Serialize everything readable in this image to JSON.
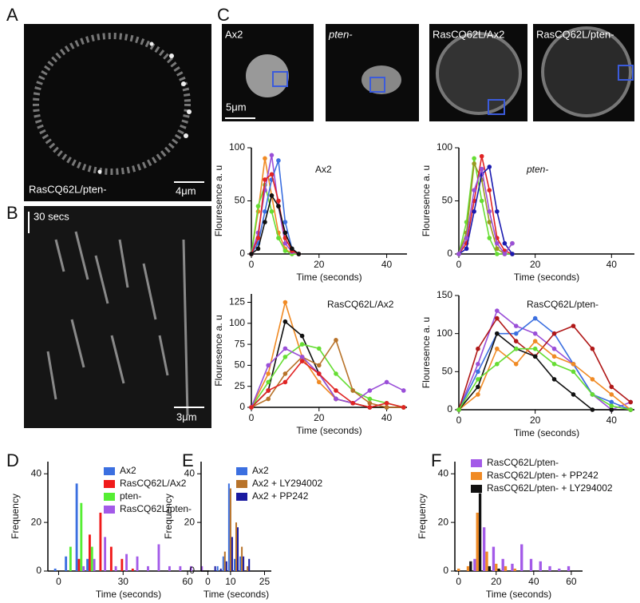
{
  "figure": {
    "panel_labels": [
      "A",
      "B",
      "C",
      "D",
      "E",
      "F"
    ],
    "panel_a": {
      "label": "RasCQ62L/pten-",
      "scale": "4μm"
    },
    "panel_b": {
      "time_scale": "30 secs",
      "scale": "3μm"
    },
    "panel_c": {
      "images": [
        "Ax2",
        "pten-",
        "RasCQ62L/Ax2",
        "RasCQ62L/pten-"
      ],
      "scale": "5μm"
    }
  },
  "chart_data": [
    {
      "type": "line",
      "title": "Ax2",
      "xlabel": "Time (seconds)",
      "ylabel": "Flouresence a. u",
      "x": [
        0,
        2,
        4,
        6,
        8,
        10,
        12,
        14
      ],
      "xlim": [
        0,
        46
      ],
      "xticks": [
        0,
        20,
        40
      ],
      "ylim": [
        0,
        100
      ],
      "yticks": [
        0,
        50,
        100
      ],
      "series": [
        {
          "name": "",
          "color": "#f08a24",
          "values": [
            0,
            40,
            90,
            55,
            20,
            5,
            0,
            0
          ]
        },
        {
          "name": "",
          "color": "#66dd33",
          "values": [
            0,
            45,
            65,
            40,
            15,
            3,
            0,
            0
          ]
        },
        {
          "name": "",
          "color": "#9a4fd8",
          "values": [
            0,
            20,
            60,
            93,
            45,
            10,
            2,
            0
          ]
        },
        {
          "name": "",
          "color": "#3b6fe0",
          "values": [
            0,
            10,
            40,
            70,
            88,
            30,
            5,
            0
          ]
        },
        {
          "name": "",
          "color": "#e02424",
          "values": [
            0,
            15,
            70,
            75,
            50,
            15,
            3,
            0
          ]
        },
        {
          "name": "",
          "color": "#111111",
          "values": [
            0,
            5,
            30,
            55,
            45,
            20,
            5,
            0
          ]
        }
      ]
    },
    {
      "type": "line",
      "title": "pten-",
      "xlabel": "Time (seconds)",
      "ylabel": "Flouresence a. u",
      "x": [
        0,
        2,
        4,
        6,
        8,
        10,
        12,
        14
      ],
      "xlim": [
        0,
        46
      ],
      "xticks": [
        0,
        20,
        40
      ],
      "ylim": [
        0,
        100
      ],
      "yticks": [
        0,
        50,
        100
      ],
      "series": [
        {
          "name": "",
          "color": "#66dd33",
          "values": [
            0,
            30,
            90,
            50,
            15,
            0,
            0,
            0
          ]
        },
        {
          "name": "",
          "color": "#9a9a20",
          "values": [
            0,
            20,
            85,
            70,
            30,
            5,
            0,
            10
          ]
        },
        {
          "name": "",
          "color": "#e02424",
          "values": [
            0,
            10,
            50,
            92,
            60,
            15,
            3,
            0
          ]
        },
        {
          "name": "",
          "color": "#1a1ab0",
          "values": [
            0,
            5,
            40,
            75,
            82,
            40,
            10,
            0
          ]
        },
        {
          "name": "",
          "color": "#9a4fd8",
          "values": [
            0,
            15,
            60,
            80,
            40,
            10,
            0,
            10
          ]
        }
      ]
    },
    {
      "type": "line",
      "title": "RasCQ62L/Ax2",
      "xlabel": "Time (seconds)",
      "ylabel": "Flouresence a. u",
      "x": [
        0,
        5,
        10,
        15,
        20,
        25,
        30,
        35,
        40,
        45
      ],
      "xlim": [
        0,
        46
      ],
      "xticks": [
        0,
        20,
        40
      ],
      "ylim": [
        0,
        135
      ],
      "yticks": [
        0,
        25,
        50,
        75,
        100,
        125
      ],
      "series": [
        {
          "name": "",
          "color": "#f08a24",
          "values": [
            0,
            40,
            125,
            60,
            30,
            10,
            5,
            0,
            0,
            0
          ]
        },
        {
          "name": "",
          "color": "#111111",
          "values": [
            0,
            20,
            102,
            85,
            40,
            10,
            5,
            0,
            0,
            0
          ]
        },
        {
          "name": "",
          "color": "#66dd33",
          "values": [
            0,
            30,
            60,
            75,
            70,
            40,
            20,
            10,
            5,
            0
          ]
        },
        {
          "name": "",
          "color": "#b8732a",
          "values": [
            0,
            10,
            40,
            60,
            50,
            80,
            20,
            5,
            0,
            0
          ]
        },
        {
          "name": "",
          "color": "#9a4fd8",
          "values": [
            0,
            50,
            70,
            60,
            40,
            10,
            5,
            20,
            30,
            20
          ]
        },
        {
          "name": "",
          "color": "#e02424",
          "values": [
            0,
            20,
            30,
            55,
            40,
            20,
            5,
            0,
            5,
            0
          ]
        }
      ]
    },
    {
      "type": "line",
      "title": "RasCQ62L/pten-",
      "xlabel": "Time (seconds)",
      "ylabel": "Flouresence a. u",
      "x": [
        0,
        5,
        10,
        15,
        20,
        25,
        30,
        35,
        40,
        45
      ],
      "xlim": [
        0,
        46
      ],
      "xticks": [
        0,
        20,
        40
      ],
      "ylim": [
        0,
        150
      ],
      "yticks": [
        0,
        50,
        100,
        150
      ],
      "series": [
        {
          "name": "",
          "color": "#9a4fd8",
          "values": [
            0,
            60,
            130,
            110,
            100,
            80,
            60,
            20,
            0,
            10
          ]
        },
        {
          "name": "",
          "color": "#3b6fe0",
          "values": [
            0,
            50,
            100,
            100,
            120,
            100,
            60,
            20,
            10,
            0
          ]
        },
        {
          "name": "",
          "color": "#b01818",
          "values": [
            0,
            80,
            120,
            90,
            70,
            100,
            110,
            80,
            30,
            10
          ]
        },
        {
          "name": "",
          "color": "#f08a24",
          "values": [
            0,
            20,
            80,
            60,
            90,
            70,
            60,
            40,
            20,
            0
          ]
        },
        {
          "name": "",
          "color": "#111111",
          "values": [
            0,
            30,
            100,
            80,
            70,
            40,
            20,
            0,
            0,
            0
          ]
        },
        {
          "name": "",
          "color": "#66dd33",
          "values": [
            0,
            40,
            60,
            80,
            80,
            60,
            50,
            20,
            5,
            0
          ]
        }
      ]
    },
    {
      "type": "bar",
      "xlabel": "Time (seconds)",
      "ylabel": "Frequency",
      "x": [
        0,
        5,
        10,
        15,
        20,
        25,
        30,
        35,
        40,
        45,
        50,
        55,
        60,
        65
      ],
      "xlim": [
        -5,
        70
      ],
      "xticks": [
        0,
        30,
        60
      ],
      "ylim": [
        0,
        45
      ],
      "yticks": [
        0,
        20,
        40
      ],
      "series": [
        {
          "name": "Ax2",
          "color": "#3b6fe0",
          "values": [
            1,
            6,
            36,
            5,
            0,
            0,
            0,
            0,
            0,
            0,
            0,
            0,
            0,
            0
          ]
        },
        {
          "name": "RasCQ62L/Ax2",
          "color": "#f01a1a",
          "values": [
            0,
            0,
            5,
            15,
            24,
            10,
            5,
            1,
            0,
            0,
            0,
            0,
            0,
            0
          ]
        },
        {
          "name": "pten-",
          "color": "#55ee33",
          "values": [
            0,
            10,
            28,
            10,
            0,
            0,
            0,
            0,
            0,
            0,
            0,
            0,
            0,
            0
          ]
        },
        {
          "name": "RasCQ62L/pten-",
          "color": "#a35ae8",
          "values": [
            0,
            0,
            2,
            5,
            14,
            2,
            7,
            6,
            2,
            11,
            2,
            2,
            2,
            2
          ]
        }
      ]
    },
    {
      "type": "bar",
      "xlabel": "Time (seconds)",
      "ylabel": "Frequency",
      "x": [
        2.5,
        5,
        7.5,
        10,
        12.5,
        15,
        17.5,
        20
      ],
      "xlim": [
        -3,
        28
      ],
      "xticks": [
        0,
        10,
        25
      ],
      "ylim": [
        0,
        45
      ],
      "yticks": [
        0,
        20,
        40
      ],
      "series": [
        {
          "name": "Ax2",
          "color": "#3b6fe0",
          "values": [
            0,
            2,
            6,
            36,
            5,
            6,
            0,
            0
          ]
        },
        {
          "name": "Ax2 + LY294002",
          "color": "#b8732a",
          "values": [
            0,
            0,
            8,
            34,
            20,
            10,
            2,
            0
          ]
        },
        {
          "name": "Ax2 + PP242",
          "color": "#1a1aa0",
          "values": [
            2,
            1,
            4,
            14,
            18,
            6,
            5,
            0
          ]
        }
      ]
    },
    {
      "type": "bar",
      "xlabel": "Time (seconds)",
      "ylabel": "Frequency",
      "x": [
        0,
        5,
        10,
        15,
        20,
        25,
        30,
        35,
        40,
        45,
        50,
        55,
        60
      ],
      "xlim": [
        -2,
        66
      ],
      "xticks": [
        0,
        20,
        40,
        60
      ],
      "ylim": [
        0,
        45
      ],
      "yticks": [
        0,
        20,
        40
      ],
      "series": [
        {
          "name": "RasCQ62L/pten-",
          "color": "#a35ae8",
          "values": [
            0,
            0,
            5,
            18,
            10,
            5,
            3,
            11,
            5,
            4,
            2,
            1,
            2
          ]
        },
        {
          "name": "RasCQ62L/pten- + PP242",
          "color": "#f08a24",
          "values": [
            1,
            2,
            24,
            8,
            3,
            2,
            1,
            0,
            0,
            0,
            0,
            0,
            0
          ]
        },
        {
          "name": "RasCQ62L/pten- + LY294002",
          "color": "#111111",
          "values": [
            0,
            4,
            32,
            2,
            1,
            0,
            0,
            0,
            0,
            0,
            0,
            0,
            0
          ]
        }
      ]
    }
  ]
}
